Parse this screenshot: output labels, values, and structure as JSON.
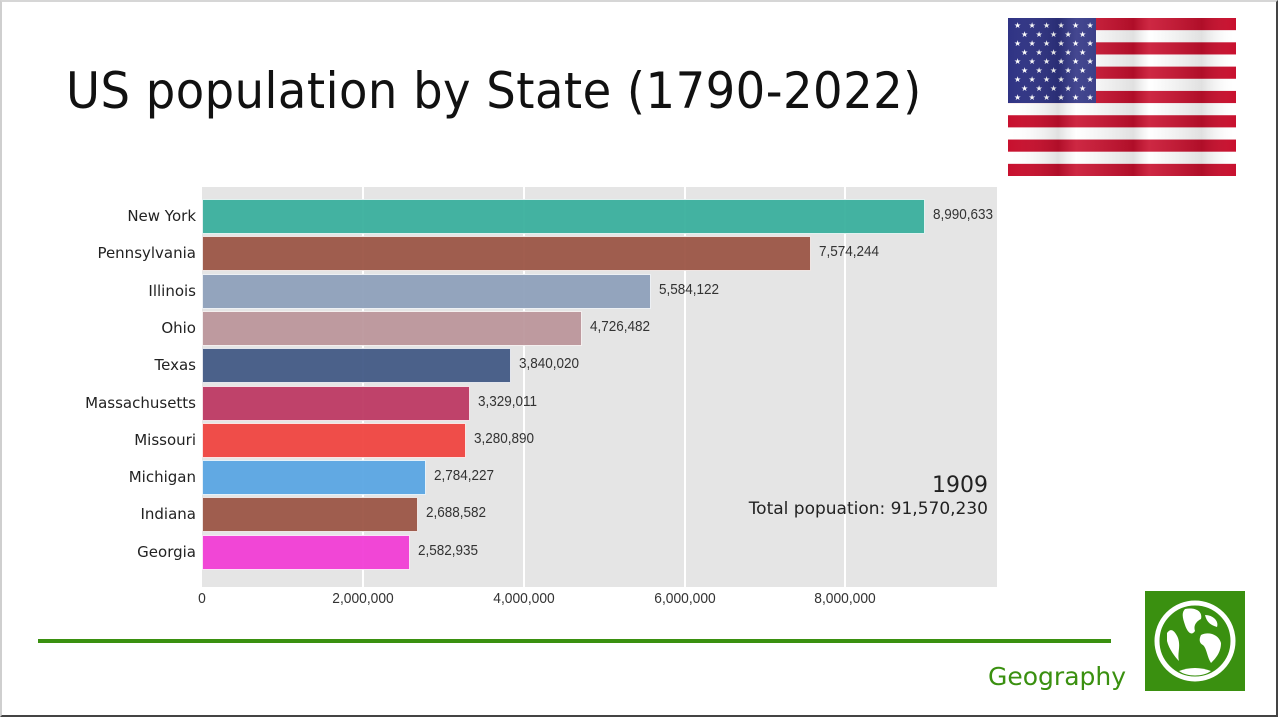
{
  "page": {
    "title": "US population by State (1790-2022)",
    "brand_label": "Geography",
    "icons": {
      "flag": "us-flag-icon",
      "logo": "globe-icon"
    },
    "colors": {
      "brand_green": "#3a9010",
      "plot_background": "#e5e5e5"
    }
  },
  "chart_data": {
    "type": "bar",
    "orientation": "horizontal",
    "title": "US population by State (1790-2022)",
    "xlabel": "",
    "ylabel": "",
    "xlim": [
      0,
      9900000
    ],
    "grid": true,
    "x_ticks": [
      0,
      2000000,
      4000000,
      6000000,
      8000000
    ],
    "x_tick_labels": [
      "0",
      "2,000,000",
      "4,000,000",
      "6,000,000",
      "8,000,000"
    ],
    "categories": [
      "New York",
      "Pennsylvania",
      "Illinois",
      "Ohio",
      "Texas",
      "Massachusetts",
      "Missouri",
      "Michigan",
      "Indiana",
      "Georgia"
    ],
    "values": [
      8990633,
      7574244,
      5584122,
      4726482,
      3840020,
      3329011,
      3280890,
      2784227,
      2688582,
      2582935
    ],
    "value_labels": [
      "8,990,633",
      "7,574,244",
      "5,584,122",
      "4,726,482",
      "3,840,020",
      "3,329,011",
      "3,280,890",
      "2,784,227",
      "2,688,582",
      "2,582,935"
    ],
    "colors": [
      "#3bb09e",
      "#9c5646",
      "#8fa1bb",
      "#bc979c",
      "#435a86",
      "#bd3a64",
      "#f04541",
      "#5aa6e3",
      "#9c5646",
      "#f23ed6"
    ],
    "annotations": {
      "year": "1909",
      "total": "Total popuation: 91,570,230"
    }
  }
}
